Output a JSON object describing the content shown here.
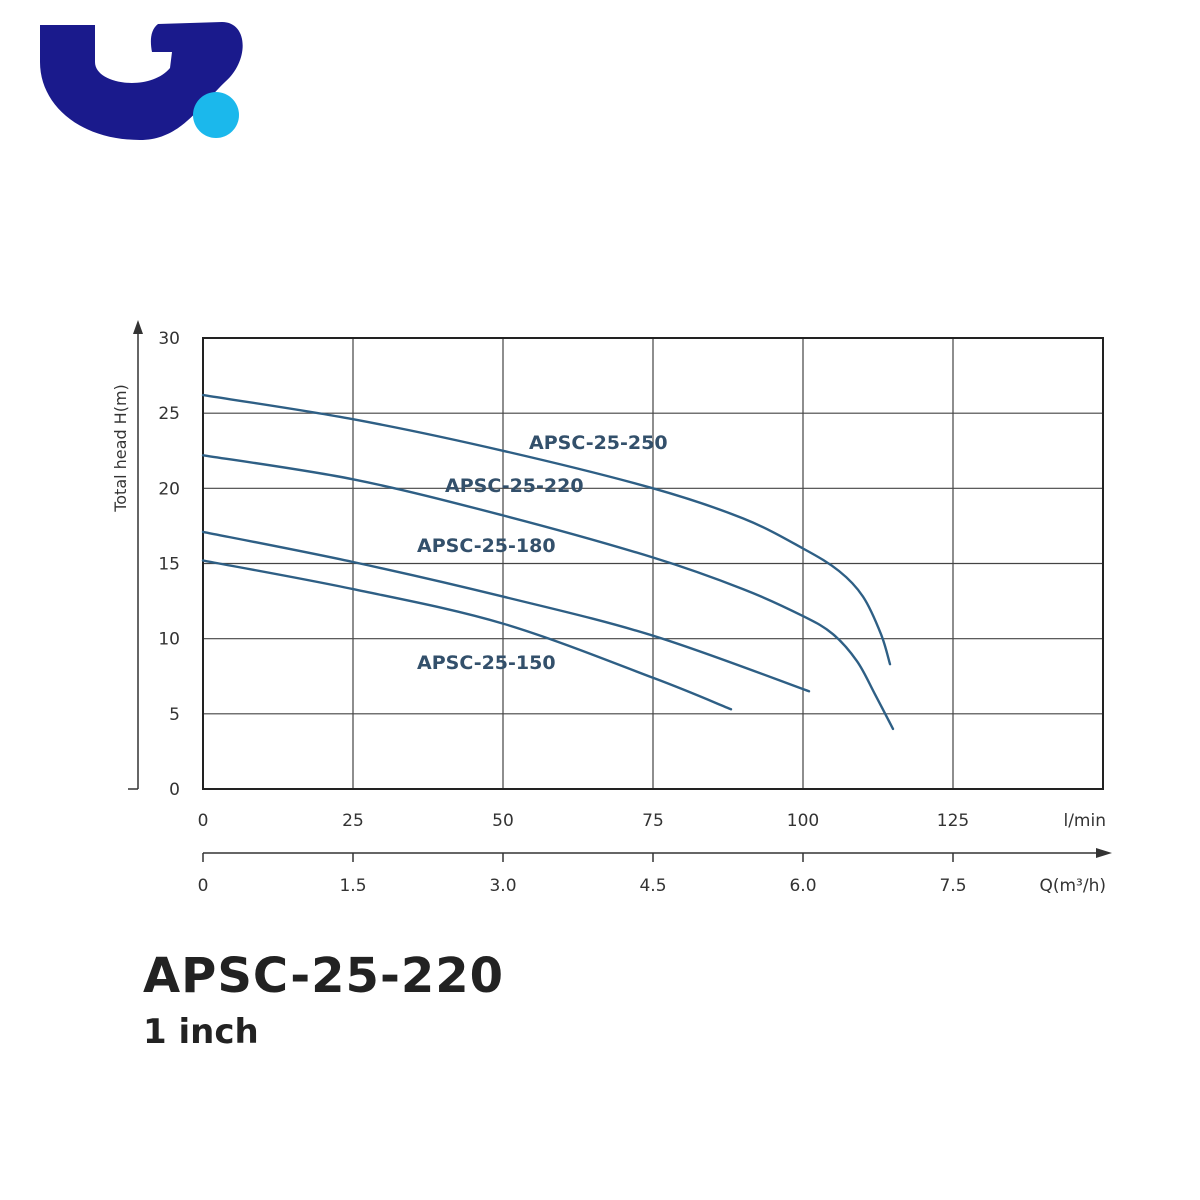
{
  "logo": {
    "primary_color": "#1a1a8c",
    "accent_color": "#1bb8ec"
  },
  "chart_data": {
    "type": "line",
    "title": "",
    "ylabel": "Total head  H(m)",
    "xlabel": "l/min",
    "xlabel2": "Q(m³/h)",
    "xlim": [
      0,
      150
    ],
    "ylim": [
      0,
      30
    ],
    "grid": true,
    "y_ticks": [
      "0",
      "5",
      "10",
      "15",
      "20",
      "25",
      "30"
    ],
    "x_ticks": [
      "0",
      "25",
      "50",
      "75",
      "100",
      "125"
    ],
    "x2_ticks": [
      "0",
      "1.5",
      "3.0",
      "4.5",
      "6.0",
      "7.5"
    ],
    "series": [
      {
        "name": "APSC-25-250",
        "x": [
          0,
          25,
          50,
          75,
          90,
          100,
          106,
          110,
          113,
          114.5
        ],
        "y": [
          26.2,
          24.6,
          22.5,
          20.0,
          18.0,
          16.0,
          14.5,
          12.8,
          10.3,
          8.3
        ]
      },
      {
        "name": "APSC-25-220",
        "x": [
          0,
          25,
          50,
          75,
          90,
          100,
          105,
          109,
          112,
          115
        ],
        "y": [
          22.2,
          20.6,
          18.2,
          15.4,
          13.3,
          11.5,
          10.3,
          8.5,
          6.3,
          4.0
        ]
      },
      {
        "name": "APSC-25-180",
        "x": [
          0,
          25,
          50,
          75,
          101
        ],
        "y": [
          17.1,
          15.1,
          12.8,
          10.2,
          6.5
        ]
      },
      {
        "name": "APSC-25-150",
        "x": [
          0,
          25,
          50,
          75,
          88
        ],
        "y": [
          15.2,
          13.3,
          11.0,
          7.4,
          5.3
        ]
      }
    ],
    "label_color": "#33506b",
    "line_color": "#2e5f85"
  },
  "caption": {
    "model": "APSC-25-220",
    "size": "1 inch"
  }
}
